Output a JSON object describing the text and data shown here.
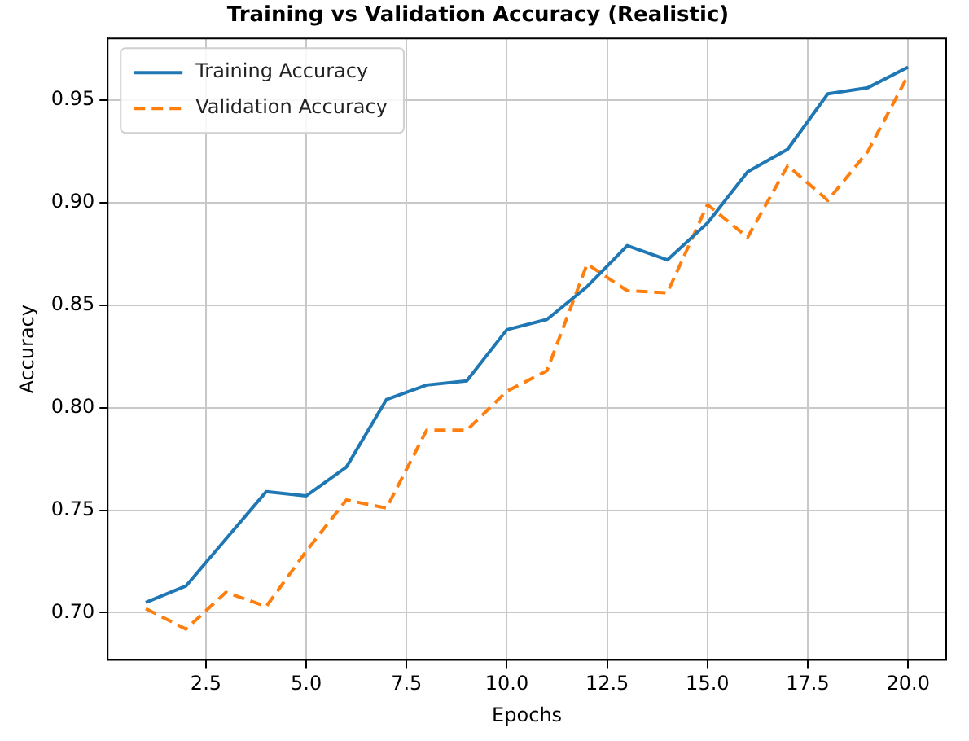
{
  "chart_data": {
    "type": "line",
    "title": "Training vs Validation Accuracy (Realistic)",
    "xlabel": "Epochs",
    "ylabel": "Accuracy",
    "x": [
      1,
      2,
      3,
      4,
      5,
      6,
      7,
      8,
      9,
      10,
      11,
      12,
      13,
      14,
      15,
      16,
      17,
      18,
      19,
      20
    ],
    "series": [
      {
        "name": "Training Accuracy",
        "color": "#1f77b4",
        "line_style": "solid",
        "values": [
          0.705,
          0.713,
          0.736,
          0.759,
          0.757,
          0.771,
          0.804,
          0.811,
          0.813,
          0.838,
          0.843,
          0.859,
          0.879,
          0.872,
          0.89,
          0.915,
          0.926,
          0.953,
          0.956,
          0.966
        ]
      },
      {
        "name": "Validation Accuracy",
        "color": "#ff7f0e",
        "line_style": "dashed",
        "values": [
          0.702,
          0.692,
          0.71,
          0.703,
          0.73,
          0.755,
          0.751,
          0.789,
          0.789,
          0.808,
          0.818,
          0.87,
          0.857,
          0.856,
          0.899,
          0.883,
          0.918,
          0.901,
          0.925,
          0.962
        ]
      }
    ],
    "xlim": [
      0.05,
      20.95
    ],
    "ylim": [
      0.677,
      0.98
    ],
    "xticks": [
      {
        "value": 2.5,
        "label": "2.5"
      },
      {
        "value": 5,
        "label": "5.0"
      },
      {
        "value": 7.5,
        "label": "7.5"
      },
      {
        "value": 10,
        "label": "10.0"
      },
      {
        "value": 12.5,
        "label": "12.5"
      },
      {
        "value": 15,
        "label": "15.0"
      },
      {
        "value": 17.5,
        "label": "17.5"
      },
      {
        "value": 20,
        "label": "20.0"
      }
    ],
    "yticks": [
      {
        "value": 0.7,
        "label": "0.70"
      },
      {
        "value": 0.75,
        "label": "0.75"
      },
      {
        "value": 0.8,
        "label": "0.80"
      },
      {
        "value": 0.85,
        "label": "0.85"
      },
      {
        "value": 0.9,
        "label": "0.90"
      },
      {
        "value": 0.95,
        "label": "0.95"
      }
    ],
    "grid": true,
    "legend": "top left",
    "marker": "none"
  }
}
